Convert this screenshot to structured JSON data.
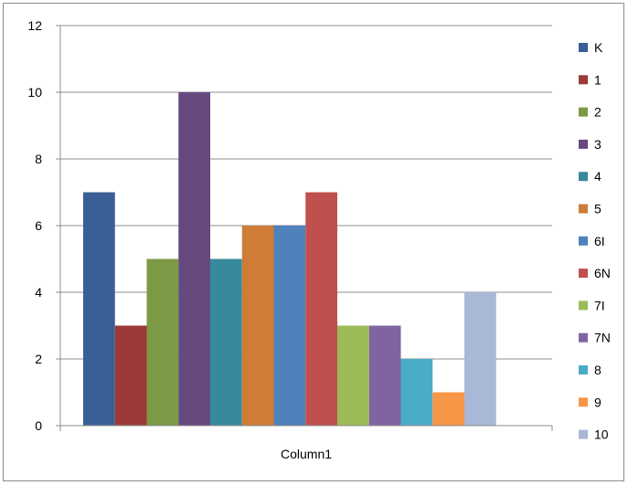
{
  "chart_data": {
    "type": "bar",
    "categories": [
      "Column1"
    ],
    "series": [
      {
        "name": "K",
        "values": [
          7
        ],
        "color": "#3a5f96"
      },
      {
        "name": "1",
        "values": [
          3
        ],
        "color": "#9b3a38"
      },
      {
        "name": "2",
        "values": [
          5
        ],
        "color": "#7c9a45"
      },
      {
        "name": "3",
        "values": [
          10
        ],
        "color": "#65497f"
      },
      {
        "name": "4",
        "values": [
          5
        ],
        "color": "#378a9b"
      },
      {
        "name": "5",
        "values": [
          6
        ],
        "color": "#cf7c38"
      },
      {
        "name": "6I",
        "values": [
          6
        ],
        "color": "#4f81bd"
      },
      {
        "name": "6N",
        "values": [
          7
        ],
        "color": "#c0504d"
      },
      {
        "name": "7I",
        "values": [
          3
        ],
        "color": "#9bbb59"
      },
      {
        "name": "7N",
        "values": [
          3
        ],
        "color": "#8064a2"
      },
      {
        "name": "8",
        "values": [
          2
        ],
        "color": "#4bacc6"
      },
      {
        "name": "9",
        "values": [
          1
        ],
        "color": "#f79646"
      },
      {
        "name": "10",
        "values": [
          4
        ],
        "color": "#a9b8d6"
      }
    ],
    "y_ticks": [
      "0",
      "2",
      "4",
      "6",
      "8",
      "10",
      "12"
    ],
    "ylim": [
      0,
      12
    ],
    "grid": true,
    "legend_position": "right",
    "gridline_color": "#8c8c8c"
  }
}
